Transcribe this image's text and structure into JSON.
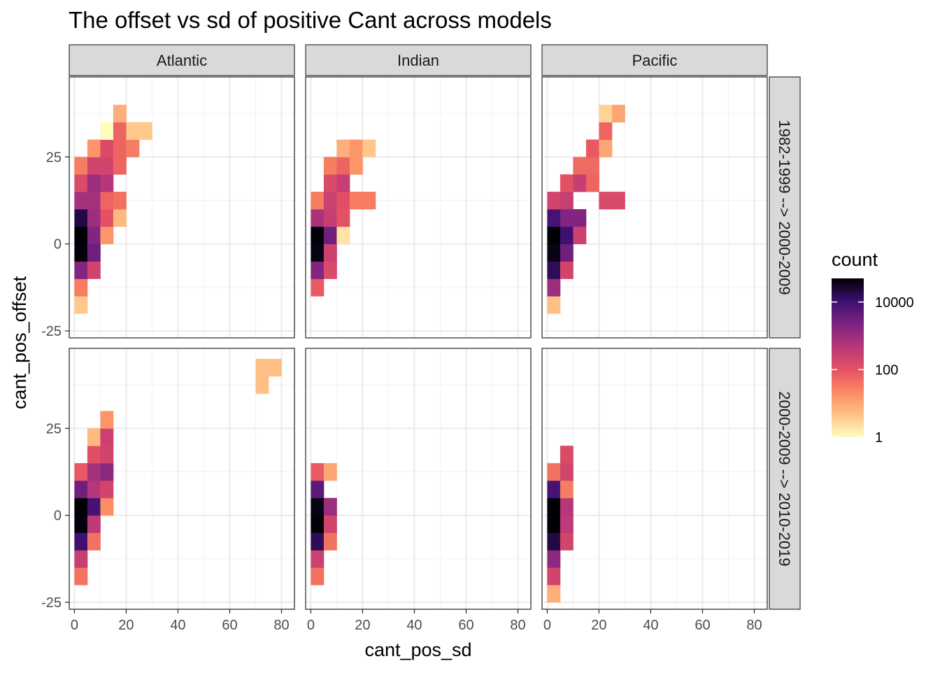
{
  "chart_data": {
    "type": "heatmap",
    "title": "The offset vs sd of positive Cant across models",
    "xlabel": "cant_pos_sd",
    "ylabel": "cant_pos_offset",
    "xlim": [
      -2,
      85
    ],
    "ylim": [
      -27,
      48
    ],
    "x_ticks": [
      0,
      20,
      40,
      60,
      80
    ],
    "y_ticks": [
      -25,
      0,
      25
    ],
    "bin_width_x": 5,
    "bin_height_y": 5,
    "columns": [
      "Atlantic",
      "Indian",
      "Pacific"
    ],
    "rows": [
      "1982-1999 --> 2000-2009",
      "2000-2009 --> 2010-2019"
    ],
    "legend": {
      "title": "count",
      "position": "right",
      "scale": "log10",
      "min": 1,
      "max": 50000,
      "ticks": [
        1,
        100,
        10000
      ],
      "tick_labels": [
        "1",
        "100",
        "10000"
      ],
      "colors": [
        "#fcfdbf",
        "#fec287",
        "#fb8861",
        "#e55064",
        "#b73779",
        "#7c2382",
        "#3b0f70",
        "#000004"
      ]
    },
    "panels": [
      {
        "column": "Atlantic",
        "row": "1982-1999 --> 2000-2009",
        "cells": [
          {
            "x": 2.5,
            "y": -17.5,
            "count": 4
          },
          {
            "x": 2.5,
            "y": -12.5,
            "count": 30
          },
          {
            "x": 2.5,
            "y": -7.5,
            "count": 2000
          },
          {
            "x": 2.5,
            "y": -2.5,
            "count": 45000
          },
          {
            "x": 2.5,
            "y": 2.5,
            "count": 50000
          },
          {
            "x": 2.5,
            "y": 7.5,
            "count": 20000
          },
          {
            "x": 2.5,
            "y": 12.5,
            "count": 800
          },
          {
            "x": 2.5,
            "y": 17.5,
            "count": 150
          },
          {
            "x": 2.5,
            "y": 22.5,
            "count": 30
          },
          {
            "x": 7.5,
            "y": -7.5,
            "count": 200
          },
          {
            "x": 7.5,
            "y": -2.5,
            "count": 3000
          },
          {
            "x": 7.5,
            "y": 2.5,
            "count": 2000
          },
          {
            "x": 7.5,
            "y": 7.5,
            "count": 1000
          },
          {
            "x": 7.5,
            "y": 12.5,
            "count": 800
          },
          {
            "x": 7.5,
            "y": 17.5,
            "count": 1000
          },
          {
            "x": 7.5,
            "y": 22.5,
            "count": 200
          },
          {
            "x": 7.5,
            "y": 27.5,
            "count": 15
          },
          {
            "x": 12.5,
            "y": 2.5,
            "count": 15
          },
          {
            "x": 12.5,
            "y": 7.5,
            "count": 100
          },
          {
            "x": 12.5,
            "y": 12.5,
            "count": 60
          },
          {
            "x": 12.5,
            "y": 17.5,
            "count": 500
          },
          {
            "x": 12.5,
            "y": 22.5,
            "count": 200
          },
          {
            "x": 12.5,
            "y": 27.5,
            "count": 150
          },
          {
            "x": 12.5,
            "y": 32.5,
            "count": 1
          },
          {
            "x": 17.5,
            "y": 7.5,
            "count": 6
          },
          {
            "x": 17.5,
            "y": 12.5,
            "count": 40
          },
          {
            "x": 17.5,
            "y": 22.5,
            "count": 60
          },
          {
            "x": 17.5,
            "y": 27.5,
            "count": 60
          },
          {
            "x": 17.5,
            "y": 32.5,
            "count": 60
          },
          {
            "x": 17.5,
            "y": 37.5,
            "count": 8
          },
          {
            "x": 22.5,
            "y": 27.5,
            "count": 30
          },
          {
            "x": 22.5,
            "y": 32.5,
            "count": 4
          },
          {
            "x": 27.5,
            "y": 32.5,
            "count": 4
          }
        ]
      },
      {
        "column": "Indian",
        "row": "1982-1999 --> 2000-2009",
        "cells": [
          {
            "x": 2.5,
            "y": -12.5,
            "count": 80
          },
          {
            "x": 2.5,
            "y": -7.5,
            "count": 2000
          },
          {
            "x": 2.5,
            "y": -2.5,
            "count": 40000
          },
          {
            "x": 2.5,
            "y": 2.5,
            "count": 45000
          },
          {
            "x": 2.5,
            "y": 7.5,
            "count": 700
          },
          {
            "x": 2.5,
            "y": 12.5,
            "count": 30
          },
          {
            "x": 7.5,
            "y": -7.5,
            "count": 150
          },
          {
            "x": 7.5,
            "y": -2.5,
            "count": 250
          },
          {
            "x": 7.5,
            "y": 2.5,
            "count": 3000
          },
          {
            "x": 7.5,
            "y": 7.5,
            "count": 300
          },
          {
            "x": 7.5,
            "y": 12.5,
            "count": 250
          },
          {
            "x": 7.5,
            "y": 17.5,
            "count": 150
          },
          {
            "x": 7.5,
            "y": 22.5,
            "count": 30
          },
          {
            "x": 12.5,
            "y": 2.5,
            "count": 2
          },
          {
            "x": 12.5,
            "y": 7.5,
            "count": 100
          },
          {
            "x": 12.5,
            "y": 12.5,
            "count": 120
          },
          {
            "x": 12.5,
            "y": 17.5,
            "count": 300
          },
          {
            "x": 12.5,
            "y": 22.5,
            "count": 60
          },
          {
            "x": 12.5,
            "y": 27.5,
            "count": 8
          },
          {
            "x": 17.5,
            "y": 12.5,
            "count": 30
          },
          {
            "x": 17.5,
            "y": 22.5,
            "count": 15
          },
          {
            "x": 17.5,
            "y": 27.5,
            "count": 15
          },
          {
            "x": 22.5,
            "y": 12.5,
            "count": 30
          },
          {
            "x": 22.5,
            "y": 27.5,
            "count": 4
          }
        ]
      },
      {
        "column": "Pacific",
        "row": "1982-1999 --> 2000-2009",
        "cells": [
          {
            "x": 2.5,
            "y": -17.5,
            "count": 5
          },
          {
            "x": 2.5,
            "y": -12.5,
            "count": 1000
          },
          {
            "x": 2.5,
            "y": -7.5,
            "count": 15000
          },
          {
            "x": 2.5,
            "y": -2.5,
            "count": 40000
          },
          {
            "x": 2.5,
            "y": 2.5,
            "count": 55000
          },
          {
            "x": 2.5,
            "y": 7.5,
            "count": 8000
          },
          {
            "x": 2.5,
            "y": 12.5,
            "count": 200
          },
          {
            "x": 7.5,
            "y": -7.5,
            "count": 200
          },
          {
            "x": 7.5,
            "y": -2.5,
            "count": 3000
          },
          {
            "x": 7.5,
            "y": 2.5,
            "count": 10000
          },
          {
            "x": 7.5,
            "y": 7.5,
            "count": 2000
          },
          {
            "x": 7.5,
            "y": 12.5,
            "count": 300
          },
          {
            "x": 7.5,
            "y": 17.5,
            "count": 100
          },
          {
            "x": 12.5,
            "y": 2.5,
            "count": 250
          },
          {
            "x": 12.5,
            "y": 7.5,
            "count": 2000
          },
          {
            "x": 12.5,
            "y": 17.5,
            "count": 300
          },
          {
            "x": 12.5,
            "y": 22.5,
            "count": 50
          },
          {
            "x": 17.5,
            "y": 17.5,
            "count": 60
          },
          {
            "x": 17.5,
            "y": 22.5,
            "count": 50
          },
          {
            "x": 17.5,
            "y": 27.5,
            "count": 80
          },
          {
            "x": 22.5,
            "y": 12.5,
            "count": 150
          },
          {
            "x": 22.5,
            "y": 27.5,
            "count": 10
          },
          {
            "x": 22.5,
            "y": 32.5,
            "count": 60
          },
          {
            "x": 22.5,
            "y": 37.5,
            "count": 3
          },
          {
            "x": 27.5,
            "y": 12.5,
            "count": 150
          },
          {
            "x": 27.5,
            "y": 37.5,
            "count": 10
          }
        ]
      },
      {
        "column": "Atlantic",
        "row": "2000-2009 --> 2010-2019",
        "cells": [
          {
            "x": 2.5,
            "y": -17.5,
            "count": 40
          },
          {
            "x": 2.5,
            "y": -12.5,
            "count": 300
          },
          {
            "x": 2.5,
            "y": -7.5,
            "count": 10000
          },
          {
            "x": 2.5,
            "y": -2.5,
            "count": 45000
          },
          {
            "x": 2.5,
            "y": 2.5,
            "count": 50000
          },
          {
            "x": 2.5,
            "y": 7.5,
            "count": 3000
          },
          {
            "x": 2.5,
            "y": 12.5,
            "count": 80
          },
          {
            "x": 7.5,
            "y": -7.5,
            "count": 40
          },
          {
            "x": 7.5,
            "y": -2.5,
            "count": 400
          },
          {
            "x": 7.5,
            "y": 2.5,
            "count": 8000
          },
          {
            "x": 7.5,
            "y": 7.5,
            "count": 500
          },
          {
            "x": 7.5,
            "y": 12.5,
            "count": 800
          },
          {
            "x": 7.5,
            "y": 17.5,
            "count": 120
          },
          {
            "x": 7.5,
            "y": 22.5,
            "count": 6
          },
          {
            "x": 12.5,
            "y": 2.5,
            "count": 20
          },
          {
            "x": 12.5,
            "y": 7.5,
            "count": 200
          },
          {
            "x": 12.5,
            "y": 12.5,
            "count": 1500
          },
          {
            "x": 12.5,
            "y": 17.5,
            "count": 200
          },
          {
            "x": 12.5,
            "y": 22.5,
            "count": 250
          },
          {
            "x": 12.5,
            "y": 27.5,
            "count": 15
          },
          {
            "x": 72.5,
            "y": 37.5,
            "count": 5
          },
          {
            "x": 72.5,
            "y": 42.5,
            "count": 5
          },
          {
            "x": 77.5,
            "y": 42.5,
            "count": 5
          }
        ]
      },
      {
        "column": "Indian",
        "row": "2000-2009 --> 2010-2019",
        "cells": [
          {
            "x": 2.5,
            "y": -17.5,
            "count": 40
          },
          {
            "x": 2.5,
            "y": -12.5,
            "count": 250
          },
          {
            "x": 2.5,
            "y": -7.5,
            "count": 15000
          },
          {
            "x": 2.5,
            "y": -2.5,
            "count": 45000
          },
          {
            "x": 2.5,
            "y": 2.5,
            "count": 40000
          },
          {
            "x": 2.5,
            "y": 7.5,
            "count": 5000
          },
          {
            "x": 2.5,
            "y": 12.5,
            "count": 80
          },
          {
            "x": 7.5,
            "y": -7.5,
            "count": 40
          },
          {
            "x": 7.5,
            "y": -2.5,
            "count": 200
          },
          {
            "x": 7.5,
            "y": 2.5,
            "count": 1000
          },
          {
            "x": 7.5,
            "y": 12.5,
            "count": 10
          }
        ]
      },
      {
        "column": "Pacific",
        "row": "2000-2009 --> 2010-2019",
        "cells": [
          {
            "x": 2.5,
            "y": -22.5,
            "count": 8
          },
          {
            "x": 2.5,
            "y": -17.5,
            "count": 200
          },
          {
            "x": 2.5,
            "y": -12.5,
            "count": 1500
          },
          {
            "x": 2.5,
            "y": -7.5,
            "count": 20000
          },
          {
            "x": 2.5,
            "y": -2.5,
            "count": 50000
          },
          {
            "x": 2.5,
            "y": 2.5,
            "count": 55000
          },
          {
            "x": 2.5,
            "y": 7.5,
            "count": 8000
          },
          {
            "x": 2.5,
            "y": 12.5,
            "count": 40
          },
          {
            "x": 7.5,
            "y": -7.5,
            "count": 200
          },
          {
            "x": 7.5,
            "y": -2.5,
            "count": 400
          },
          {
            "x": 7.5,
            "y": 2.5,
            "count": 500
          },
          {
            "x": 7.5,
            "y": 7.5,
            "count": 30
          },
          {
            "x": 7.5,
            "y": 12.5,
            "count": 200
          },
          {
            "x": 7.5,
            "y": 17.5,
            "count": 150
          }
        ]
      }
    ]
  }
}
